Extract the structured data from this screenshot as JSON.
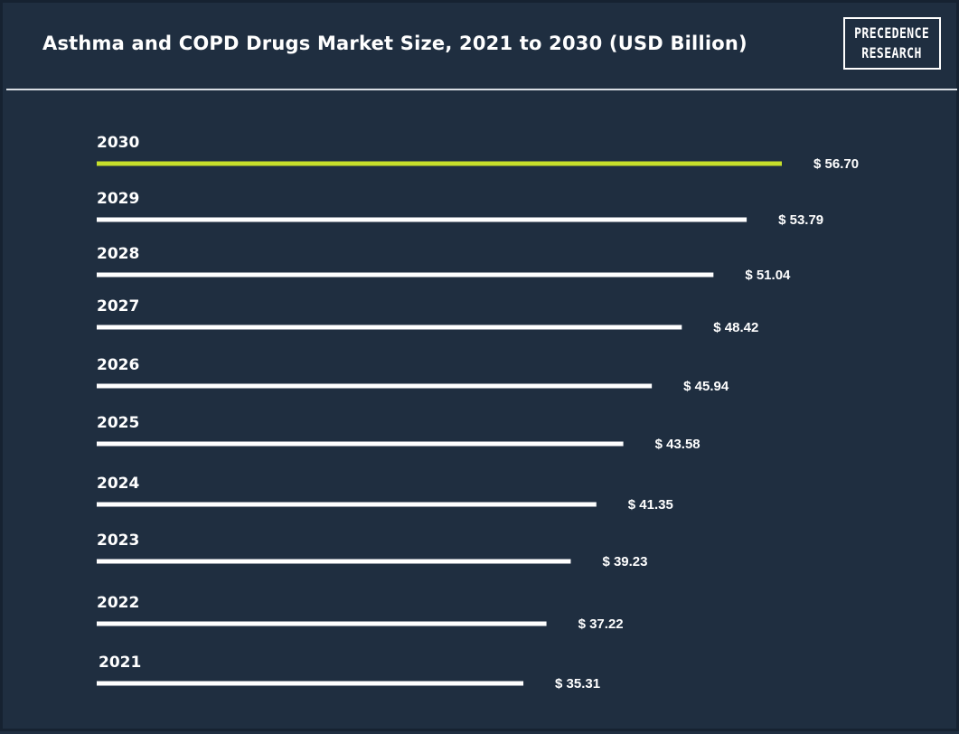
{
  "header": {
    "title": "Asthma and COPD Drugs Market Size, 2021 to 2030 (USD Billion)"
  },
  "logo": {
    "line1": "PRECEDENCE",
    "line2": "RESEARCH"
  },
  "colors": {
    "background": "#1f2e40",
    "bar_default": "#ffffff",
    "bar_highlight": "#c7e02b",
    "text": "#ffffff"
  },
  "chart_data": {
    "type": "bar",
    "orientation": "horizontal",
    "title": "Asthma and COPD Drugs Market Size, 2021 to 2030 (USD Billion)",
    "categories": [
      "2030",
      "2029",
      "2028",
      "2027",
      "2026",
      "2025",
      "2024",
      "2023",
      "2022",
      "2021"
    ],
    "values": [
      56.7,
      53.79,
      51.04,
      48.42,
      45.94,
      43.58,
      41.35,
      39.23,
      37.22,
      35.31
    ],
    "value_labels": [
      "$ 56.70",
      "$ 53.79",
      "$ 51.04",
      "$ 48.42",
      "$ 45.94",
      "$ 43.58",
      "$ 41.35",
      "$ 39.23",
      "$ 37.22",
      "$ 35.31"
    ],
    "highlight_category": "2030",
    "xlabel": "",
    "ylabel": "",
    "grid": false,
    "legend": false
  }
}
